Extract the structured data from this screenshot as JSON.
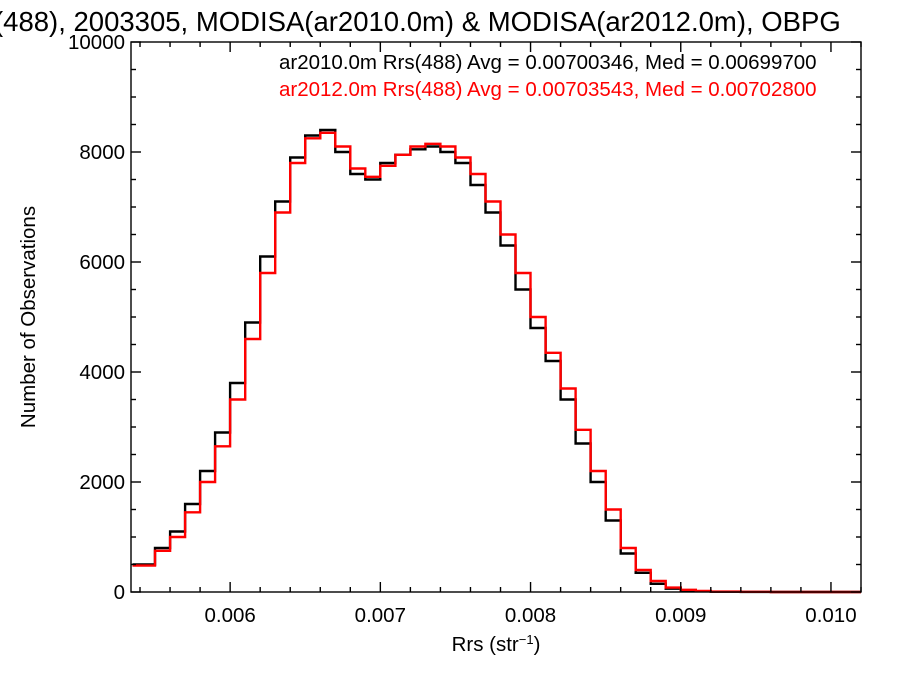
{
  "chart_data": {
    "type": "line",
    "step": true,
    "title": "(488), 2003305, MODISA(ar2010.0m) & MODISA(ar2012.0m), OBPG",
    "xlabel": "Rrs (str",
    "xlabel_sup": "−1",
    "xlabel_close": ")",
    "ylabel": "Number of Observations",
    "xlim": [
      0.00534,
      0.0102
    ],
    "ylim": [
      0,
      10000
    ],
    "xticks": [
      0.006,
      0.007,
      0.008,
      0.009,
      0.01
    ],
    "xtick_labels": [
      "0.006",
      "0.007",
      "0.008",
      "0.009",
      "0.010"
    ],
    "yticks": [
      0,
      2000,
      4000,
      6000,
      8000,
      10000
    ],
    "ytick_labels": [
      "0",
      "2000",
      "4000",
      "6000",
      "8000",
      "10000"
    ],
    "legend": [
      "ar2010.0m Rrs(488) Avg = 0.00700346, Med = 0.00699700",
      "ar2012.0m Rrs(488) Avg = 0.00703543, Med = 0.00702800"
    ],
    "series": [
      {
        "name": "ar2010.0m",
        "color": "#000000",
        "x": [
          0.00535,
          0.0055,
          0.0056,
          0.0057,
          0.0058,
          0.0059,
          0.006,
          0.0061,
          0.0062,
          0.0063,
          0.0064,
          0.0065,
          0.0066,
          0.0067,
          0.0068,
          0.0069,
          0.007,
          0.0071,
          0.0072,
          0.0073,
          0.0074,
          0.0075,
          0.0076,
          0.0077,
          0.0078,
          0.0079,
          0.008,
          0.0081,
          0.0082,
          0.0083,
          0.0084,
          0.0085,
          0.0086,
          0.0087,
          0.0088,
          0.0089,
          0.009,
          0.0091,
          0.0092,
          0.0094,
          0.0096,
          0.0098,
          0.0102
        ],
        "y": [
          500,
          800,
          1100,
          1600,
          2200,
          2900,
          3800,
          4900,
          6100,
          7100,
          7900,
          8300,
          8400,
          8000,
          7600,
          7500,
          7800,
          7950,
          8050,
          8100,
          8000,
          7800,
          7400,
          6900,
          6300,
          5500,
          4800,
          4200,
          3500,
          2700,
          2000,
          1300,
          700,
          350,
          150,
          60,
          30,
          15,
          5,
          2,
          0,
          0,
          0
        ]
      },
      {
        "name": "ar2012.0m",
        "color": "#ff0000",
        "x": [
          0.00535,
          0.0055,
          0.0056,
          0.0057,
          0.0058,
          0.0059,
          0.006,
          0.0061,
          0.0062,
          0.0063,
          0.0064,
          0.0065,
          0.0066,
          0.0067,
          0.0068,
          0.0069,
          0.007,
          0.0071,
          0.0072,
          0.0073,
          0.0074,
          0.0075,
          0.0076,
          0.0077,
          0.0078,
          0.0079,
          0.008,
          0.0081,
          0.0082,
          0.0083,
          0.0084,
          0.0085,
          0.0086,
          0.0087,
          0.0088,
          0.0089,
          0.009,
          0.0091,
          0.0092,
          0.0094,
          0.0096,
          0.0098,
          0.0102
        ],
        "y": [
          480,
          750,
          1000,
          1450,
          2000,
          2650,
          3500,
          4600,
          5800,
          6900,
          7800,
          8250,
          8350,
          8100,
          7700,
          7550,
          7750,
          7950,
          8100,
          8150,
          8100,
          7900,
          7600,
          7100,
          6500,
          5800,
          5000,
          4350,
          3700,
          2950,
          2200,
          1500,
          800,
          400,
          200,
          80,
          40,
          20,
          8,
          3,
          0,
          0,
          0
        ]
      }
    ]
  }
}
